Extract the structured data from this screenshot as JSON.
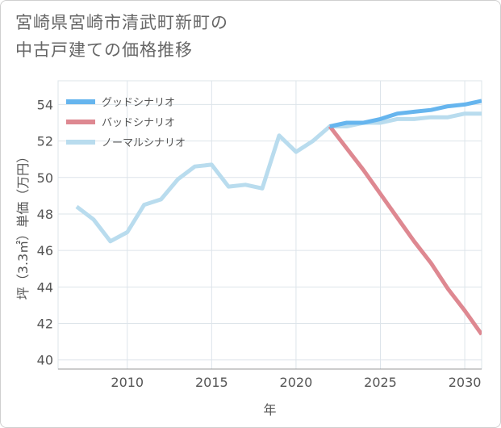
{
  "title_lines": [
    "宮崎県宮崎市清武町新町の",
    "中古戸建ての価格推移"
  ],
  "colors": {
    "good": "#66b5ee",
    "bad": "#de8891",
    "normal": "#b9dcee",
    "grid": "#dde4ea",
    "axis": "#999999"
  },
  "chart_data": {
    "type": "line",
    "title": "宮崎県宮崎市清武町新町の中古戸建ての価格推移",
    "xlabel": "年",
    "ylabel": "坪（3.3㎡）単価（万円）",
    "xlim": [
      2005.9,
      2031
    ],
    "ylim": [
      39.5,
      55.3
    ],
    "xticks": [
      2010,
      2015,
      2020,
      2025,
      2030
    ],
    "yticks": [
      40,
      42,
      44,
      46,
      48,
      50,
      52,
      54
    ],
    "legend_position": "top-left",
    "series": [
      {
        "name": "ノーマルシナリオ",
        "key": "normal",
        "x": [
          2007,
          2008,
          2009,
          2010,
          2011,
          2012,
          2013,
          2014,
          2015,
          2016,
          2017,
          2018,
          2019,
          2020,
          2021,
          2022,
          2023,
          2024,
          2025,
          2026,
          2027,
          2028,
          2029,
          2030,
          2031
        ],
        "values": [
          48.4,
          47.7,
          46.5,
          47.0,
          48.5,
          48.8,
          49.9,
          50.6,
          50.7,
          49.5,
          49.6,
          49.4,
          52.3,
          51.4,
          52.0,
          52.8,
          52.8,
          53.0,
          53.0,
          53.2,
          53.2,
          53.3,
          53.3,
          53.5,
          53.5
        ]
      },
      {
        "name": "グッドシナリオ",
        "key": "good",
        "x": [
          2022,
          2023,
          2024,
          2025,
          2026,
          2027,
          2028,
          2029,
          2030,
          2031
        ],
        "values": [
          52.8,
          53.0,
          53.0,
          53.2,
          53.5,
          53.6,
          53.7,
          53.9,
          54.0,
          54.2
        ]
      },
      {
        "name": "バッドシナリオ",
        "key": "bad",
        "x": [
          2022,
          2023,
          2024,
          2025,
          2026,
          2027,
          2028,
          2029,
          2030,
          2031
        ],
        "values": [
          52.8,
          51.6,
          50.4,
          49.1,
          47.8,
          46.5,
          45.3,
          43.9,
          42.7,
          41.4
        ]
      }
    ],
    "legend": [
      {
        "label": "グッドシナリオ",
        "key": "good"
      },
      {
        "label": "バッドシナリオ",
        "key": "bad"
      },
      {
        "label": "ノーマルシナリオ",
        "key": "normal"
      }
    ]
  }
}
